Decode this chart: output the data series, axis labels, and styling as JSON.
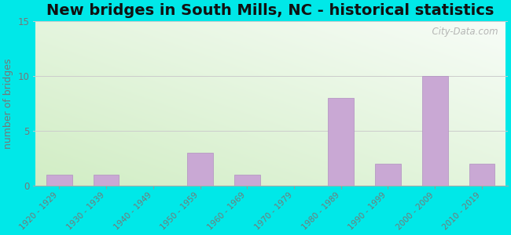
{
  "title": "New bridges in South Mills, NC - historical statistics",
  "ylabel": "number of bridges",
  "categories": [
    "1920 - 1929",
    "1930 - 1939",
    "1940 - 1949",
    "1950 - 1959",
    "1960 - 1969",
    "1970 - 1979",
    "1980 - 1989",
    "1990 - 1999",
    "2000 - 2009",
    "2010 - 2019"
  ],
  "values": [
    1,
    1,
    0,
    3,
    1,
    0,
    8,
    2,
    10,
    2
  ],
  "bar_color": "#c9a8d4",
  "bar_edge_color": "#b090c0",
  "ylim": [
    0,
    15
  ],
  "yticks": [
    0,
    5,
    10,
    15
  ],
  "background_outer": "#00e8e8",
  "title_fontsize": 14,
  "ylabel_fontsize": 9,
  "watermark": "  City-Data.com",
  "grid_color": "#cccccc",
  "tick_color": "#777777",
  "label_color": "#777777"
}
